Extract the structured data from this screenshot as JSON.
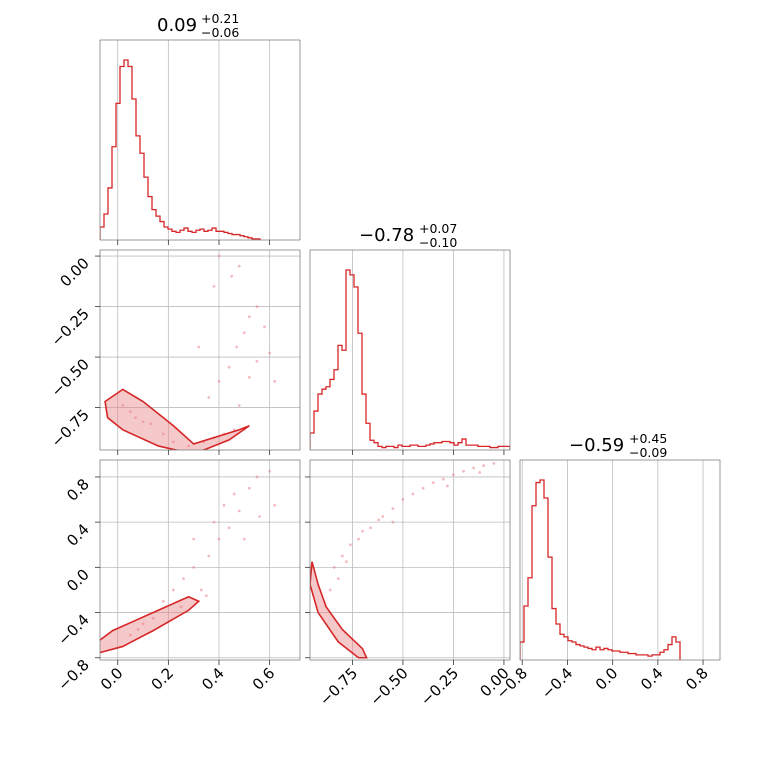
{
  "colors": {
    "line": "#d62728",
    "fill": "#e8848a",
    "scatter": "#e8848a",
    "grid": "#bdbdbd",
    "frame": "#808080"
  },
  "chart_data": {
    "type": "corner",
    "grid": true,
    "parameters": [
      {
        "title": {
          "median": "0.09",
          "plus": "+0.21",
          "minus": "−0.06"
        },
        "range": [
          -0.07,
          0.72
        ],
        "ticks": [
          0.0,
          0.2,
          0.4,
          0.6
        ],
        "tick_labels": [
          "0.0",
          "0.2",
          "0.4",
          "0.6"
        ]
      },
      {
        "title": {
          "median": "−0.78",
          "plus": "+0.07",
          "minus": "−0.10"
        },
        "range": [
          -0.96,
          0.03
        ],
        "ticks": [
          -0.75,
          -0.5,
          -0.25,
          0.0
        ],
        "tick_labels": [
          "−0.75",
          "−0.50",
          "−0.25",
          "0.00"
        ]
      },
      {
        "title": {
          "median": "−0.59",
          "plus": "+0.45",
          "minus": "−0.09"
        },
        "range": [
          -0.82,
          0.95
        ],
        "ticks": [
          -0.8,
          -0.4,
          0.0,
          0.4,
          0.8
        ],
        "tick_labels": [
          "−0.8",
          "−0.4",
          "0.0",
          "0.4",
          "0.8"
        ]
      }
    ],
    "histograms": [
      {
        "bin_start": -0.07,
        "bin_width": 0.0158,
        "counts": [
          12,
          24,
          48,
          86,
          126,
          160,
          166,
          160,
          130,
          96,
          80,
          58,
          40,
          28,
          22,
          17,
          12,
          10,
          8,
          7,
          9,
          11,
          8,
          7,
          9,
          10,
          8,
          9,
          11,
          8,
          8,
          7,
          6,
          5,
          5,
          4,
          3,
          2,
          1,
          1
        ]
      },
      {
        "bin_start": -0.96,
        "bin_width": 0.0198,
        "counts": [
          14,
          32,
          46,
          50,
          52,
          58,
          66,
          86,
          82,
          148,
          144,
          134,
          96,
          46,
          22,
          8,
          6,
          3,
          2,
          3,
          3,
          2,
          4,
          3,
          3,
          4,
          4,
          3,
          3,
          4,
          5,
          6,
          6,
          7,
          7,
          6,
          4,
          6,
          9,
          4,
          4,
          4,
          3,
          3,
          3,
          2,
          2,
          3,
          3,
          3
        ]
      },
      {
        "bin_start": -0.82,
        "bin_width": 0.0354,
        "counts": [
          14,
          42,
          64,
          120,
          138,
          140,
          126,
          80,
          40,
          28,
          20,
          18,
          15,
          14,
          12,
          11,
          10,
          9,
          8,
          10,
          8,
          9,
          8,
          7,
          7,
          6,
          6,
          5,
          5,
          4,
          4,
          4,
          3,
          4,
          4,
          6,
          8,
          12,
          18,
          14
        ]
      }
    ],
    "pairs": [
      {
        "x_param": 0,
        "y_param": 1,
        "samples": [
          [
            0.02,
            -0.74
          ],
          [
            0.05,
            -0.77
          ],
          [
            0.07,
            -0.8
          ],
          [
            0.1,
            -0.82
          ],
          [
            0.13,
            -0.83
          ],
          [
            0.18,
            -0.88
          ],
          [
            0.22,
            -0.92
          ],
          [
            0.28,
            -0.94
          ],
          [
            0.34,
            -0.92
          ],
          [
            0.38,
            -0.9
          ],
          [
            0.42,
            -0.88
          ],
          [
            0.46,
            -0.86
          ],
          [
            0.4,
            -0.62
          ],
          [
            0.44,
            -0.55
          ],
          [
            0.47,
            -0.45
          ],
          [
            0.5,
            -0.38
          ],
          [
            0.52,
            -0.3
          ],
          [
            0.55,
            -0.25
          ],
          [
            0.58,
            -0.35
          ],
          [
            0.6,
            -0.48
          ],
          [
            0.45,
            -0.1
          ],
          [
            0.48,
            -0.05
          ],
          [
            0.4,
            0.0
          ],
          [
            0.38,
            -0.15
          ],
          [
            0.32,
            -0.45
          ],
          [
            0.36,
            -0.7
          ],
          [
            0.48,
            -0.74
          ],
          [
            0.52,
            -0.6
          ],
          [
            0.55,
            -0.52
          ],
          [
            0.62,
            -0.62
          ]
        ]
      },
      {
        "x_param": 0,
        "y_param": 2,
        "samples": [
          [
            0.05,
            -0.6
          ],
          [
            0.08,
            -0.55
          ],
          [
            0.1,
            -0.5
          ],
          [
            0.14,
            -0.45
          ],
          [
            0.18,
            -0.3
          ],
          [
            0.22,
            -0.2
          ],
          [
            0.26,
            -0.1
          ],
          [
            0.3,
            0.0
          ],
          [
            0.33,
            -0.2
          ],
          [
            0.36,
            0.1
          ],
          [
            0.4,
            0.25
          ],
          [
            0.44,
            0.35
          ],
          [
            0.48,
            0.5
          ],
          [
            0.52,
            0.7
          ],
          [
            0.55,
            0.8
          ],
          [
            0.6,
            0.85
          ],
          [
            0.38,
            0.4
          ],
          [
            0.42,
            0.55
          ],
          [
            0.46,
            0.65
          ],
          [
            0.3,
            0.25
          ],
          [
            0.25,
            -0.35
          ],
          [
            0.35,
            -0.25
          ],
          [
            0.5,
            0.25
          ],
          [
            0.56,
            0.45
          ],
          [
            0.62,
            0.55
          ]
        ]
      },
      {
        "x_param": 1,
        "y_param": 2,
        "samples": [
          [
            -0.86,
            -0.2
          ],
          [
            -0.84,
            0.0
          ],
          [
            -0.8,
            0.1
          ],
          [
            -0.76,
            0.2
          ],
          [
            -0.72,
            0.25
          ],
          [
            -0.66,
            0.35
          ],
          [
            -0.6,
            0.45
          ],
          [
            -0.55,
            0.52
          ],
          [
            -0.5,
            0.6
          ],
          [
            -0.45,
            0.65
          ],
          [
            -0.4,
            0.7
          ],
          [
            -0.35,
            0.75
          ],
          [
            -0.3,
            0.78
          ],
          [
            -0.25,
            0.82
          ],
          [
            -0.2,
            0.85
          ],
          [
            -0.15,
            0.88
          ],
          [
            -0.1,
            0.9
          ],
          [
            -0.05,
            0.92
          ],
          [
            -0.62,
            0.42
          ],
          [
            -0.7,
            0.32
          ],
          [
            -0.78,
            0.05
          ],
          [
            -0.82,
            -0.1
          ],
          [
            -0.28,
            0.72
          ],
          [
            -0.12,
            0.84
          ],
          [
            -0.55,
            0.4
          ]
        ]
      }
    ]
  }
}
